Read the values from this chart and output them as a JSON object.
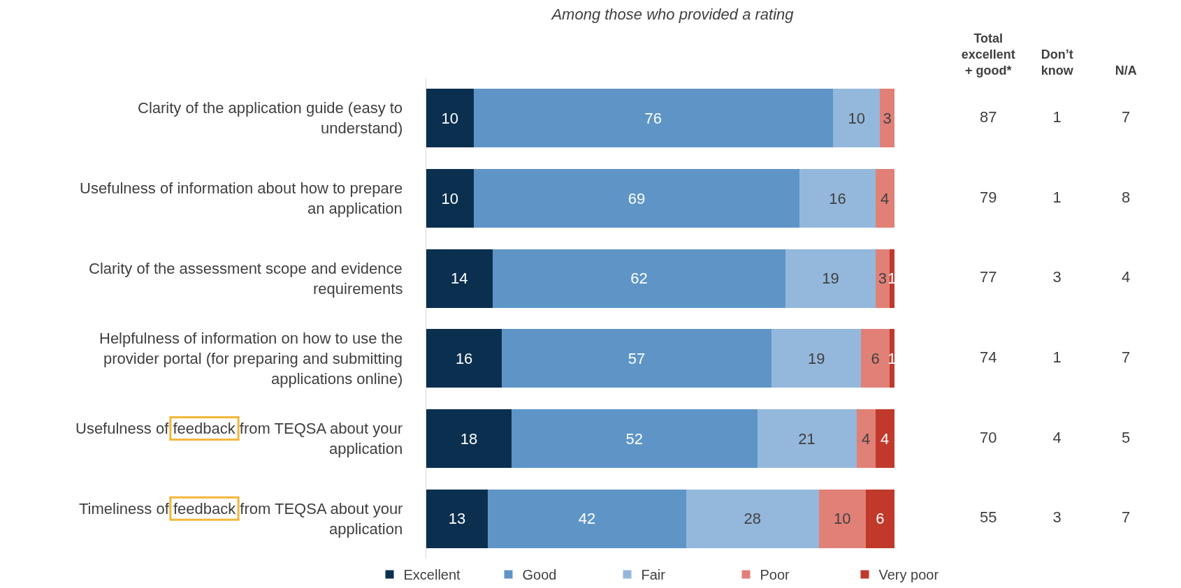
{
  "chart_data": [
    {
      "type": "bar",
      "orientation": "horizontal",
      "stacked": true,
      "data_labels": true,
      "title": "Among those who provided a rating",
      "legend": "bottom",
      "tick_labels": "y",
      "categories": [
        "Clarity of the application guide (easy to\nunderstand)",
        "Usefulness of information about how to prepare\nan application",
        "Clarity of the assessment scope and evidence\nrequirements",
        "Helpfulness of information on how to use the\nprovider portal (for preparing and submitting\napplications online)",
        "Usefulness of feedback from TEQSA about your\napplication",
        "Timeliness of feedback from TEQSA about your\napplication"
      ],
      "series": [
        {
          "name": "Excellent",
          "color": "#0b2f4f",
          "values": [
            10,
            10,
            14,
            16,
            18,
            13
          ]
        },
        {
          "name": "Good",
          "color": "#5e95c6",
          "values": [
            76,
            69,
            62,
            57,
            52,
            42
          ]
        },
        {
          "name": "Fair",
          "color": "#94b8dc",
          "values": [
            10,
            16,
            19,
            19,
            21,
            28
          ]
        },
        {
          "name": "Poor",
          "color": "#e08077",
          "values": [
            3,
            4,
            3,
            6,
            4,
            10
          ]
        },
        {
          "name": "Very poor",
          "color": "#c0392b",
          "values": [
            null,
            null,
            1,
            1,
            4,
            6
          ]
        }
      ]
    },
    {
      "type": "other",
      "categories": [
        "Total\nexcellent\n+ good*",
        "Don’t\nknow",
        "N/A"
      ],
      "annotations": [
        "87",
        "1",
        "7",
        "79",
        "1",
        "8",
        "77",
        "3",
        "4",
        "74",
        "1",
        "7",
        "70",
        "4",
        "5",
        "55",
        "3",
        "7"
      ]
    }
  ]
}
